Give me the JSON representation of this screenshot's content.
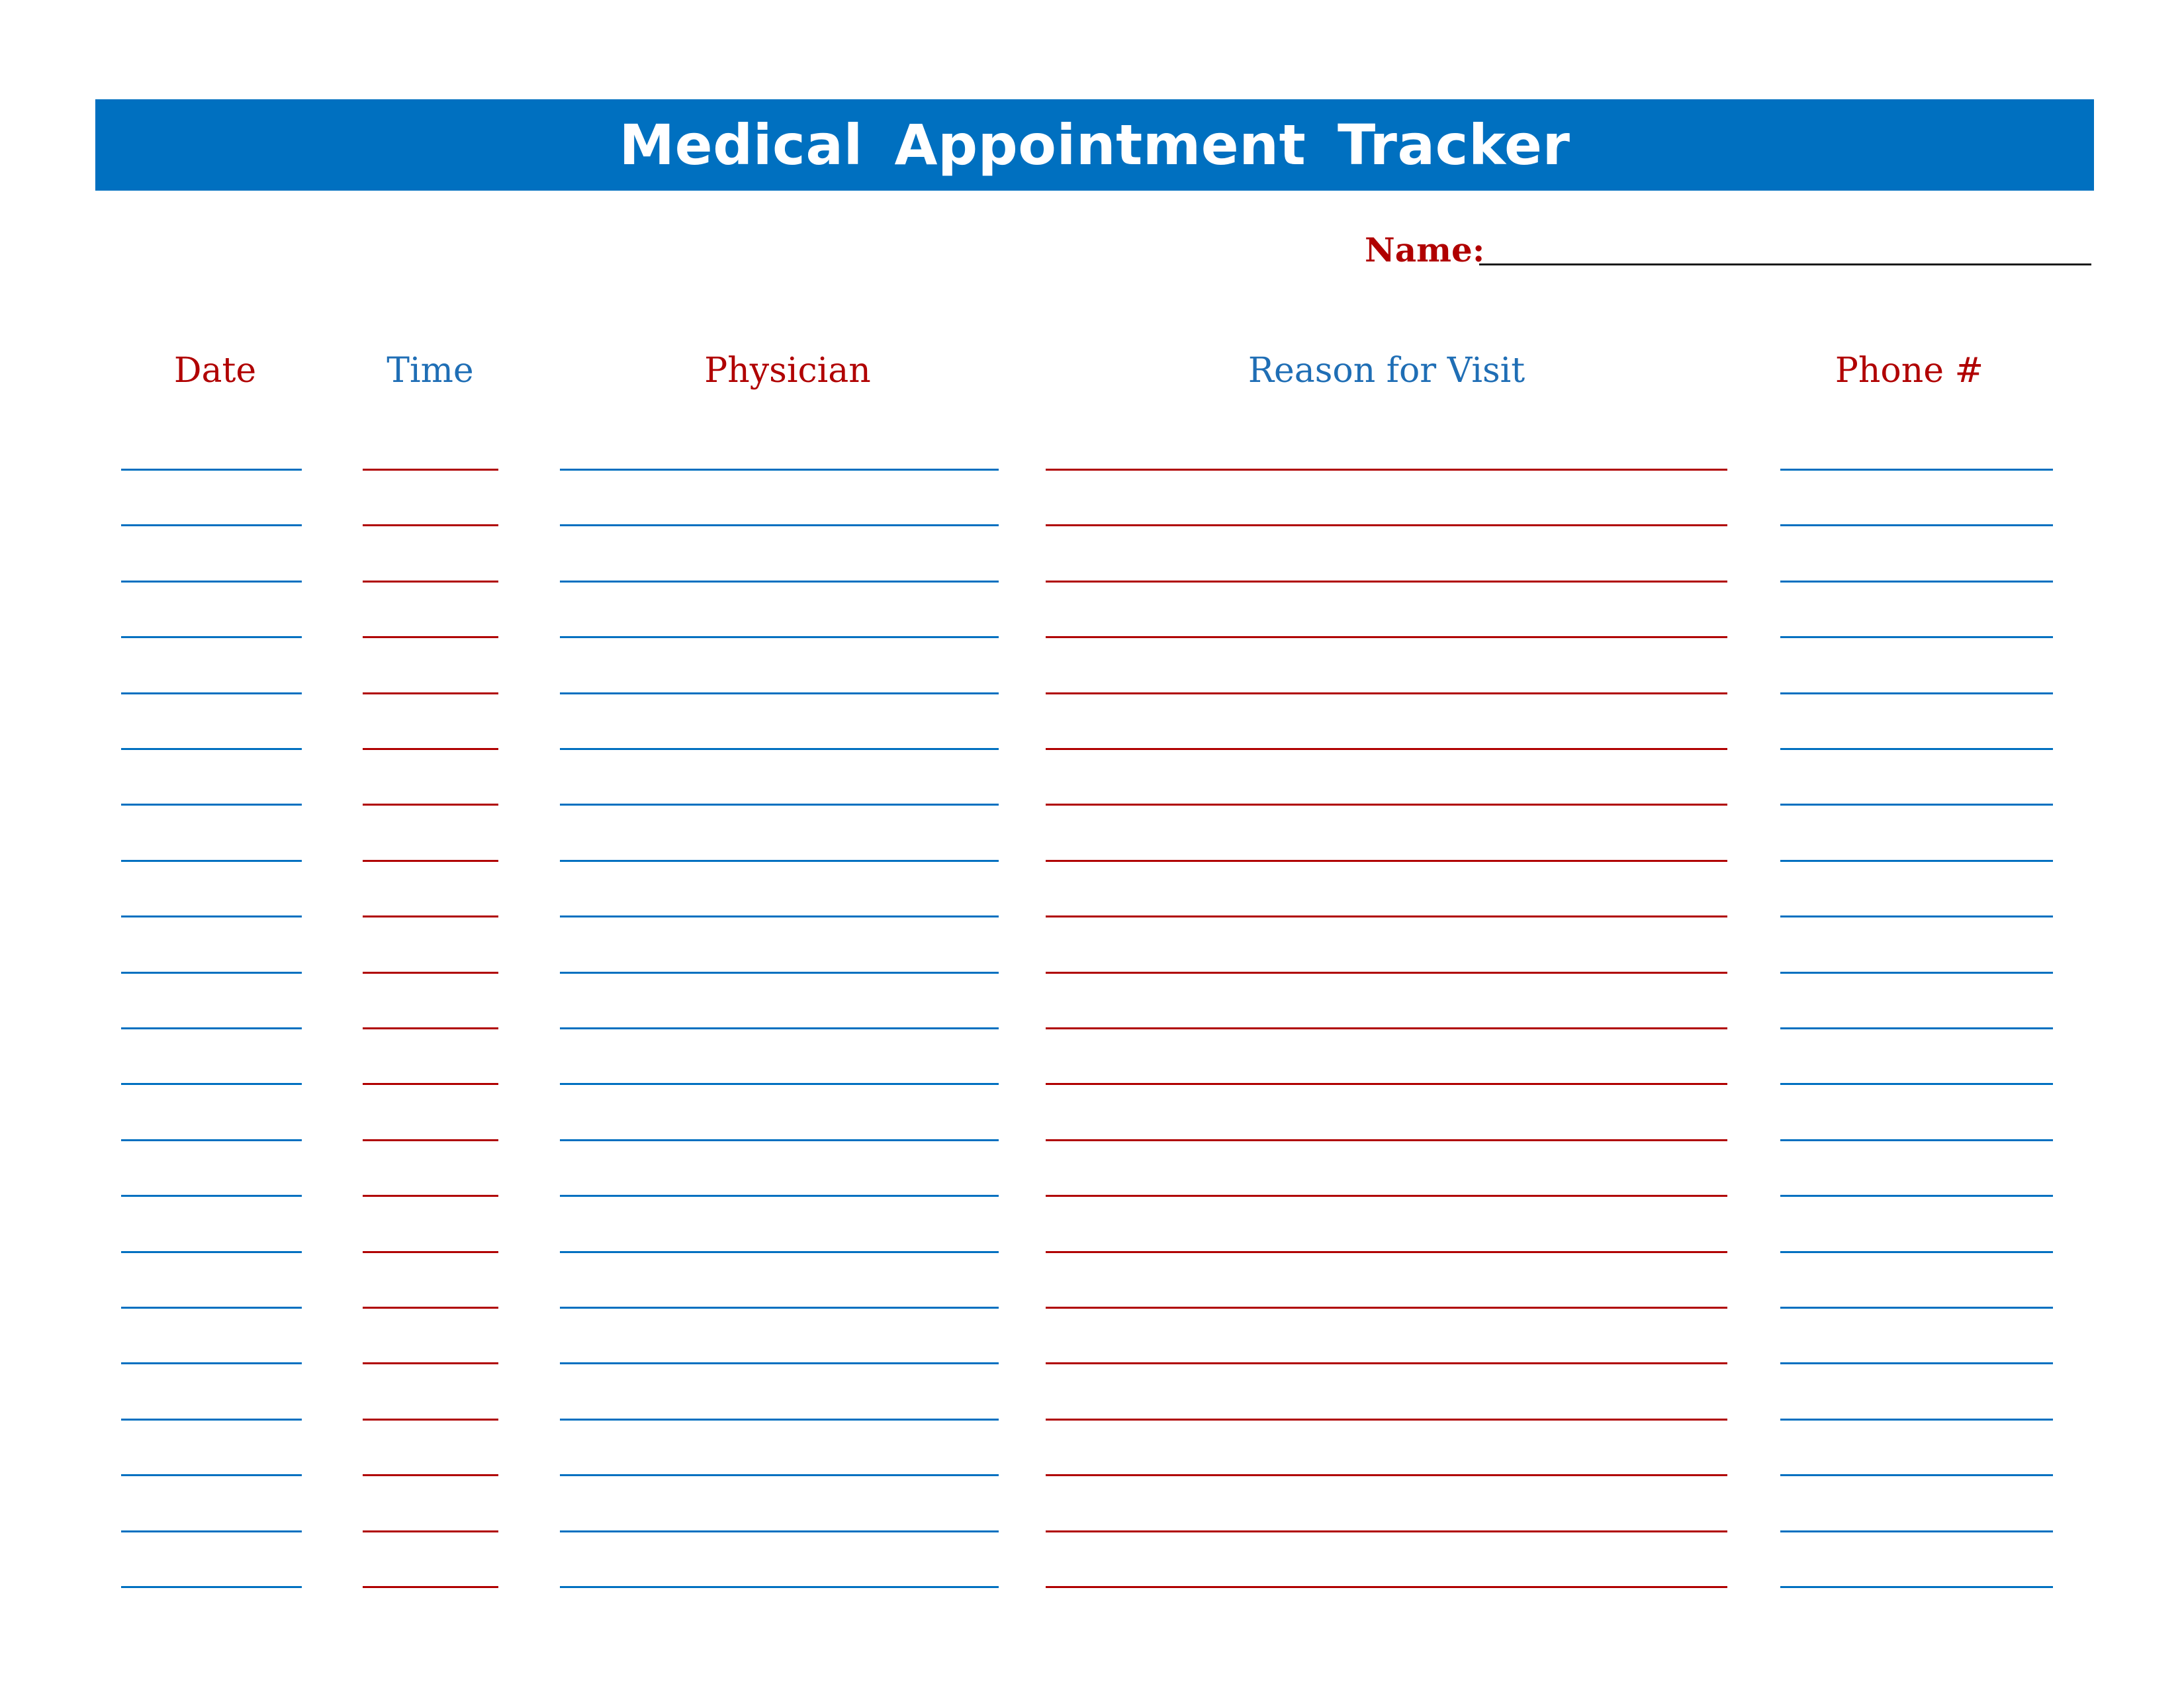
{
  "title": "Medical Appointment Tracker",
  "name_field": {
    "label": "Name:",
    "value": ""
  },
  "columns": [
    {
      "key": "date",
      "label": "Date",
      "color": "#b00000",
      "line_color": "#0070c0"
    },
    {
      "key": "time",
      "label": "Time",
      "color": "#1f6eb5",
      "line_color": "#b00000"
    },
    {
      "key": "physician",
      "label": "Physician",
      "color": "#b00000",
      "line_color": "#0070c0"
    },
    {
      "key": "reason",
      "label": "Reason for Visit",
      "color": "#1f6eb5",
      "line_color": "#b00000"
    },
    {
      "key": "phone",
      "label": "Phone #",
      "color": "#b00000",
      "line_color": "#0070c0"
    }
  ],
  "rows": [
    {
      "date": "",
      "time": "",
      "physician": "",
      "reason": "",
      "phone": ""
    },
    {
      "date": "",
      "time": "",
      "physician": "",
      "reason": "",
      "phone": ""
    },
    {
      "date": "",
      "time": "",
      "physician": "",
      "reason": "",
      "phone": ""
    },
    {
      "date": "",
      "time": "",
      "physician": "",
      "reason": "",
      "phone": ""
    },
    {
      "date": "",
      "time": "",
      "physician": "",
      "reason": "",
      "phone": ""
    },
    {
      "date": "",
      "time": "",
      "physician": "",
      "reason": "",
      "phone": ""
    },
    {
      "date": "",
      "time": "",
      "physician": "",
      "reason": "",
      "phone": ""
    },
    {
      "date": "",
      "time": "",
      "physician": "",
      "reason": "",
      "phone": ""
    },
    {
      "date": "",
      "time": "",
      "physician": "",
      "reason": "",
      "phone": ""
    },
    {
      "date": "",
      "time": "",
      "physician": "",
      "reason": "",
      "phone": ""
    },
    {
      "date": "",
      "time": "",
      "physician": "",
      "reason": "",
      "phone": ""
    },
    {
      "date": "",
      "time": "",
      "physician": "",
      "reason": "",
      "phone": ""
    },
    {
      "date": "",
      "time": "",
      "physician": "",
      "reason": "",
      "phone": ""
    },
    {
      "date": "",
      "time": "",
      "physician": "",
      "reason": "",
      "phone": ""
    },
    {
      "date": "",
      "time": "",
      "physician": "",
      "reason": "",
      "phone": ""
    },
    {
      "date": "",
      "time": "",
      "physician": "",
      "reason": "",
      "phone": ""
    },
    {
      "date": "",
      "time": "",
      "physician": "",
      "reason": "",
      "phone": ""
    },
    {
      "date": "",
      "time": "",
      "physician": "",
      "reason": "",
      "phone": ""
    },
    {
      "date": "",
      "time": "",
      "physician": "",
      "reason": "",
      "phone": ""
    },
    {
      "date": "",
      "time": "",
      "physician": "",
      "reason": "",
      "phone": ""
    },
    {
      "date": "",
      "time": "",
      "physician": "",
      "reason": "",
      "phone": ""
    }
  ]
}
